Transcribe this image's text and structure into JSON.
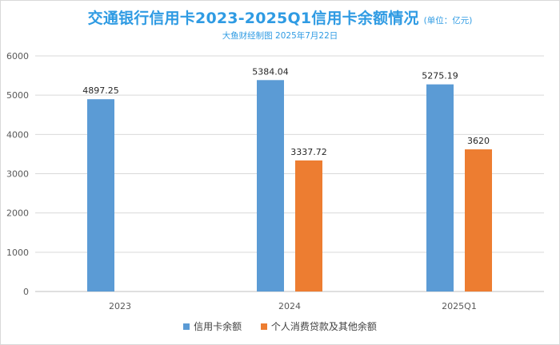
{
  "chart_data": {
    "type": "bar",
    "title": "交通银行信用卡2023-2025Q1信用卡余额情况",
    "unit_note": "(单位：亿元)",
    "subtitle": "大鱼财经制图 2025年7月22日",
    "categories": [
      "2023",
      "2024",
      "2025Q1"
    ],
    "series": [
      {
        "name": "信用卡余额",
        "color": "#5b9bd5",
        "values": [
          4897.25,
          5384.04,
          5275.19
        ],
        "labels": [
          "4897.25",
          "5384.04",
          "5275.19"
        ]
      },
      {
        "name": "个人消费贷款及其他余额",
        "color": "#ed7d31",
        "values": [
          null,
          3337.72,
          3620
        ],
        "labels": [
          "",
          "3337.72",
          "3620"
        ]
      }
    ],
    "ylim": [
      0,
      6000
    ],
    "yticks": [
      "0",
      "1000",
      "2000",
      "3000",
      "4000",
      "5000",
      "6000"
    ],
    "grid": true,
    "legend": "bottom"
  }
}
